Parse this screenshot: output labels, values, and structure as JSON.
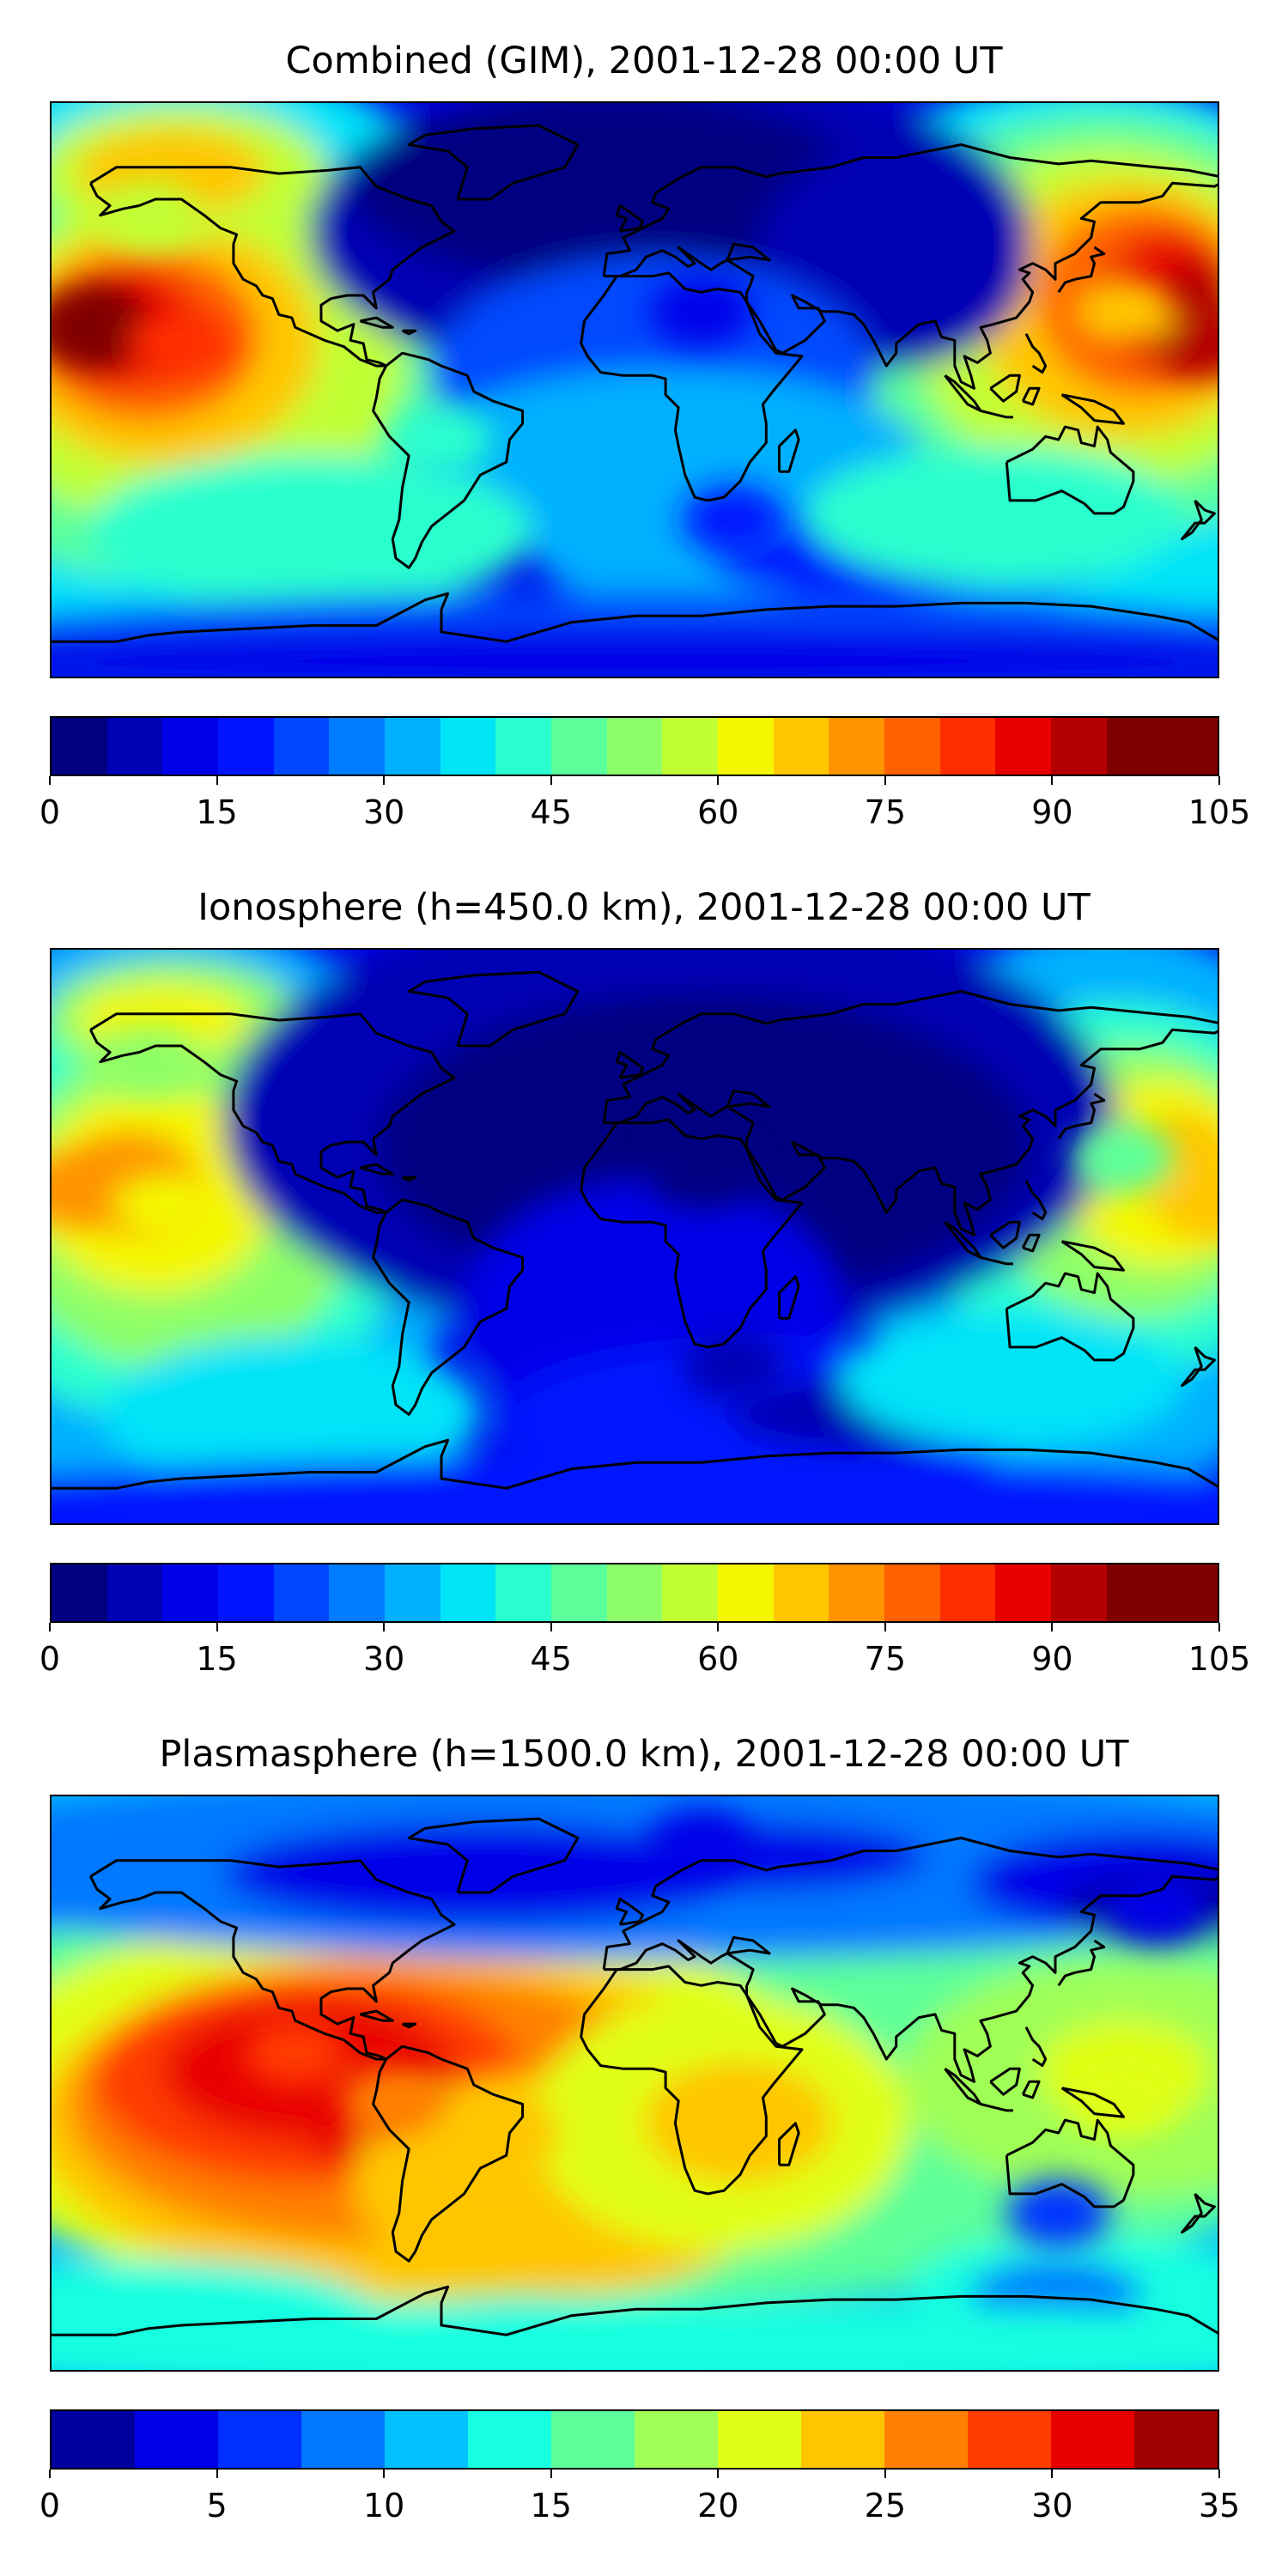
{
  "colors": {
    "jet_22": [
      "#000080",
      "#0000b4",
      "#0000e8",
      "#0014ff",
      "#0048ff",
      "#007cff",
      "#00b0ff",
      "#00e4f8",
      "#29ffce",
      "#5cff9a",
      "#8eff68",
      "#c1ff35",
      "#f4f700",
      "#ffc600",
      "#ff9300",
      "#ff6000",
      "#ff2e00",
      "#e80000",
      "#b40000",
      "#800000",
      "#800000"
    ],
    "jet_15": [
      "#00009f",
      "#0000e8",
      "#0030ff",
      "#0078ff",
      "#00c0ff",
      "#17ffe0",
      "#5cff9a",
      "#9fff57",
      "#e0ff17",
      "#ffc600",
      "#ff8000",
      "#ff3b00",
      "#e80000",
      "#a00000"
    ],
    "coast": "#000000",
    "frame": "#000000"
  },
  "chart_data": [
    {
      "type": "heatmap",
      "title": "Combined (GIM), 2001-12-28 00:00 UT",
      "colorbar": {
        "ticks": [
          "0",
          "15",
          "30",
          "45",
          "60",
          "75",
          "90",
          "105"
        ],
        "range": [
          0,
          105
        ],
        "levels": 21
      },
      "features": [
        {
          "lon": -170,
          "lat": 20,
          "value": 100
        },
        {
          "lon": -140,
          "lat": 15,
          "value": 85
        },
        {
          "lon": 175,
          "lat": 15,
          "value": 95
        },
        {
          "lon": 150,
          "lat": 25,
          "value": 70
        },
        {
          "lon": -150,
          "lat": 55,
          "value": 60
        },
        {
          "lon": 20,
          "lat": 25,
          "value": 12
        },
        {
          "lon": 30,
          "lat": -40,
          "value": 18
        },
        {
          "lon": -60,
          "lat": -15,
          "value": 45
        }
      ]
    },
    {
      "type": "heatmap",
      "title": "Ionosphere  (h=450.0 km), 2001-12-28 00:00 UT",
      "colorbar": {
        "ticks": [
          "0",
          "15",
          "30",
          "45",
          "60",
          "75",
          "90",
          "105"
        ],
        "range": [
          0,
          105
        ],
        "levels": 21
      },
      "features": [
        {
          "lon": -175,
          "lat": 15,
          "value": 75
        },
        {
          "lon": -145,
          "lat": 10,
          "value": 65
        },
        {
          "lon": 178,
          "lat": 10,
          "value": 72
        },
        {
          "lon": -150,
          "lat": 55,
          "value": 55
        },
        {
          "lon": 20,
          "lat": 20,
          "value": 3
        },
        {
          "lon": 30,
          "lat": -40,
          "value": 8
        },
        {
          "lon": 150,
          "lat": 25,
          "value": 50
        }
      ]
    },
    {
      "type": "heatmap",
      "title": "Plasmasphere (h=1500.0 km), 2001-12-28 00:00 UT",
      "colorbar": {
        "ticks": [
          "0",
          "5",
          "10",
          "15",
          "20",
          "25",
          "30",
          "35"
        ],
        "range": [
          0,
          35
        ],
        "levels": 14
      },
      "features": [
        {
          "lon": -105,
          "lat": 10,
          "value": 31
        },
        {
          "lon": -75,
          "lat": -5,
          "value": 29
        },
        {
          "lon": -40,
          "lat": -15,
          "value": 26
        },
        {
          "lon": 30,
          "lat": -10,
          "value": 26
        },
        {
          "lon": 150,
          "lat": -5,
          "value": 22
        },
        {
          "lon": 20,
          "lat": 75,
          "value": 3
        },
        {
          "lon": 160,
          "lat": 55,
          "value": 5
        },
        {
          "lon": 130,
          "lat": -40,
          "value": 8
        }
      ]
    }
  ]
}
